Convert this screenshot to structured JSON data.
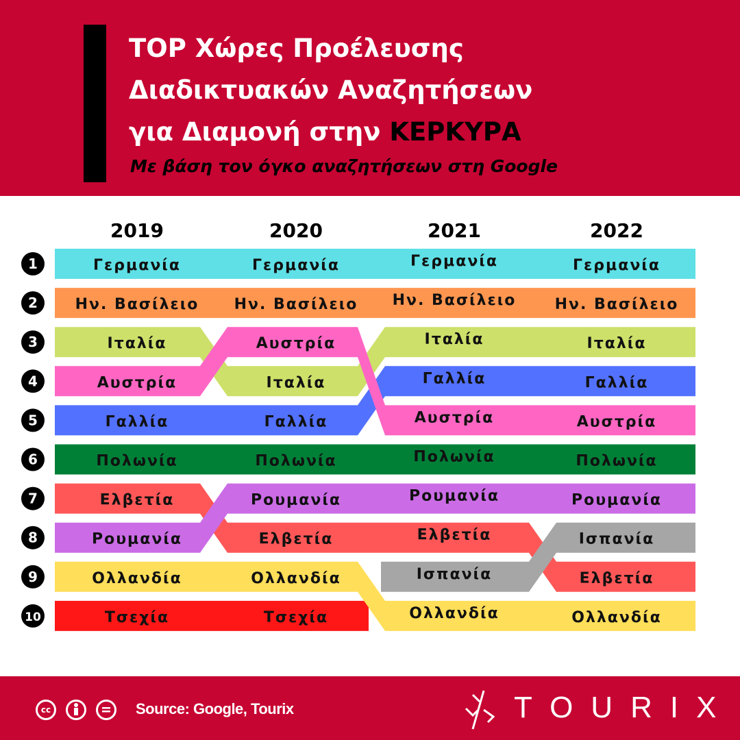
{
  "header": {
    "title_line1": "TOP Χώρες Προέλευσης",
    "title_line2": "Διαδικτυακών Αναζητήσεων",
    "title_line3_prefix": "για Διαμονή στην ",
    "title_line3_highlight": "ΚΕΡΚΥΡΑ",
    "subtitle": "Με βάση τον όγκο αναζητήσεων στη Google"
  },
  "footer": {
    "license_icons": [
      "cc-icon",
      "attribution-icon",
      "no-derivatives-icon"
    ],
    "cc_label": "cc",
    "source": "Source: Google, Tourix",
    "brand": "TOURIX"
  },
  "chart_data": {
    "type": "bump",
    "years": [
      "2019",
      "2020",
      "2021",
      "2022"
    ],
    "ranks": [
      "1",
      "2",
      "3",
      "4",
      "5",
      "6",
      "7",
      "8",
      "9",
      "10"
    ],
    "series": [
      {
        "name": "Γερμανία",
        "color": "#5ee0e6",
        "ranks": [
          1,
          1,
          1,
          1
        ]
      },
      {
        "name": "Ην. Βασίλειο",
        "color": "#ff9650",
        "ranks": [
          2,
          2,
          2,
          2
        ]
      },
      {
        "name": "Ιταλία",
        "color": "#cde06a",
        "ranks": [
          3,
          4,
          3,
          3
        ]
      },
      {
        "name": "Γαλλία",
        "color": "#5271ff",
        "ranks": [
          5,
          5,
          4,
          4
        ]
      },
      {
        "name": "Αυστρία",
        "color": "#ff66c4",
        "ranks": [
          4,
          3,
          5,
          5
        ]
      },
      {
        "name": "Πολωνία",
        "color": "#008037",
        "ranks": [
          6,
          6,
          6,
          6
        ]
      },
      {
        "name": "Ελβετία",
        "color": "#ff5757",
        "ranks": [
          7,
          8,
          8,
          9
        ]
      },
      {
        "name": "Ρουμανία",
        "color": "#cb6ce6",
        "ranks": [
          8,
          7,
          7,
          7
        ]
      },
      {
        "name": "Τσεχία",
        "color": "#ff1616",
        "ranks": [
          10,
          10,
          null,
          null
        ]
      },
      {
        "name": "Ισπανία",
        "color": "#a6a6a6",
        "ranks": [
          null,
          null,
          9,
          8
        ]
      },
      {
        "name": "Ολλανδία",
        "color": "#ffde59",
        "ranks": [
          9,
          9,
          10,
          10
        ]
      }
    ]
  }
}
